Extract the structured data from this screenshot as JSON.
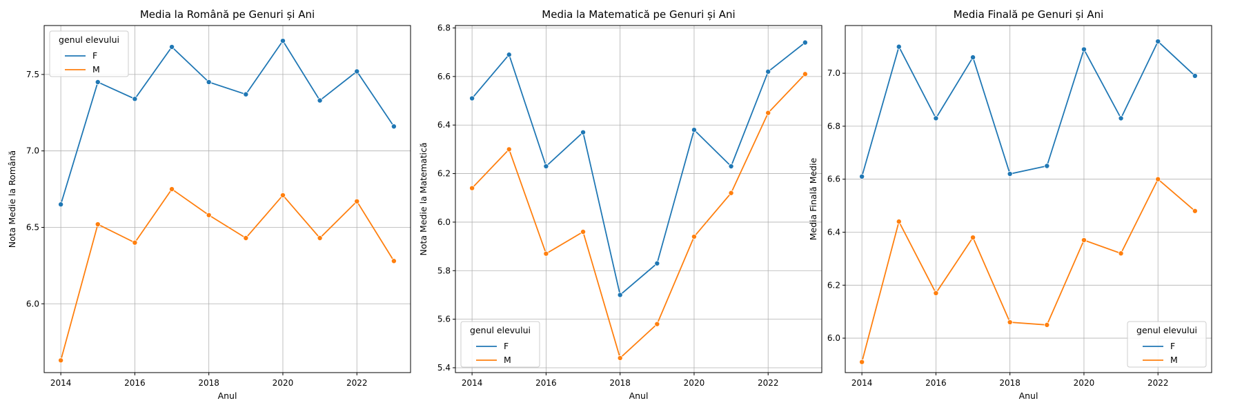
{
  "chart_data": [
    {
      "type": "line",
      "title": "Media la Română pe Genuri și Ani",
      "xlabel": "Anul",
      "ylabel": "Nota Medie la Română",
      "x": [
        2014,
        2015,
        2016,
        2017,
        2018,
        2019,
        2020,
        2021,
        2022,
        2023
      ],
      "xticks": [
        "2014",
        "2016",
        "2018",
        "2020",
        "2022"
      ],
      "yticks": [
        "6.0",
        "6.5",
        "7.0",
        "7.5"
      ],
      "xlim": [
        2013.55,
        2023.45
      ],
      "ylim": [
        5.55,
        7.82
      ],
      "grid": true,
      "legend": {
        "title": "genul elevului",
        "placement": "top-left"
      },
      "series": [
        {
          "name": "F",
          "color": "#1f77b4",
          "values": [
            6.65,
            7.45,
            7.34,
            7.68,
            7.45,
            7.37,
            7.72,
            7.33,
            7.52,
            7.16
          ]
        },
        {
          "name": "M",
          "color": "#ff7f0e",
          "values": [
            5.63,
            6.52,
            6.4,
            6.75,
            6.58,
            6.43,
            6.71,
            6.43,
            6.67,
            6.28
          ]
        }
      ]
    },
    {
      "type": "line",
      "title": "Media la Matematică pe Genuri și Ani",
      "xlabel": "Anul",
      "ylabel": "Nota Medie la Matematică",
      "x": [
        2014,
        2015,
        2016,
        2017,
        2018,
        2019,
        2020,
        2021,
        2022,
        2023
      ],
      "xticks": [
        "2014",
        "2016",
        "2018",
        "2020",
        "2022"
      ],
      "yticks": [
        "5.4",
        "5.6",
        "5.8",
        "6.0",
        "6.2",
        "6.4",
        "6.6",
        "6.8"
      ],
      "xlim": [
        2013.55,
        2023.45
      ],
      "ylim": [
        5.38,
        6.81
      ],
      "grid": true,
      "legend": {
        "title": "genul elevului",
        "placement": "bottom-left"
      },
      "series": [
        {
          "name": "F",
          "color": "#1f77b4",
          "values": [
            6.51,
            6.69,
            6.23,
            6.37,
            5.7,
            5.83,
            6.38,
            6.23,
            6.62,
            6.74
          ]
        },
        {
          "name": "M",
          "color": "#ff7f0e",
          "values": [
            6.14,
            6.3,
            5.87,
            5.96,
            5.44,
            5.58,
            5.94,
            6.12,
            6.45,
            6.61
          ]
        }
      ]
    },
    {
      "type": "line",
      "title": "Media Finală pe Genuri și Ani",
      "xlabel": "Anul",
      "ylabel": "Media Finală Medie",
      "x": [
        2014,
        2015,
        2016,
        2017,
        2018,
        2019,
        2020,
        2021,
        2022,
        2023
      ],
      "xticks": [
        "2014",
        "2016",
        "2018",
        "2020",
        "2022"
      ],
      "yticks": [
        "6.0",
        "6.2",
        "6.4",
        "6.6",
        "6.8",
        "7.0"
      ],
      "xlim": [
        2013.55,
        2023.45
      ],
      "ylim": [
        5.87,
        7.18
      ],
      "grid": true,
      "legend": {
        "title": "genul elevului",
        "placement": "bottom-right"
      },
      "series": [
        {
          "name": "F",
          "color": "#1f77b4",
          "values": [
            6.61,
            7.1,
            6.83,
            7.06,
            6.62,
            6.65,
            7.09,
            6.83,
            7.12,
            6.99
          ]
        },
        {
          "name": "M",
          "color": "#ff7f0e",
          "values": [
            5.91,
            6.44,
            6.17,
            6.38,
            6.06,
            6.05,
            6.37,
            6.32,
            6.6,
            6.48
          ]
        }
      ]
    }
  ]
}
